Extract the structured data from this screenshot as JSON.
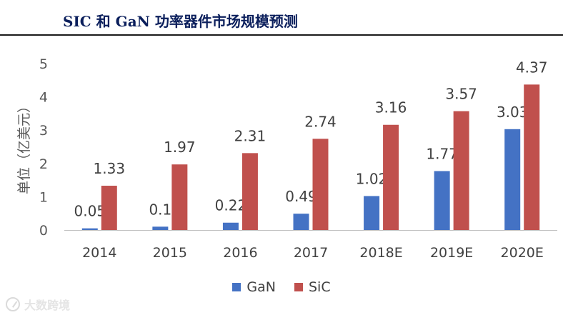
{
  "header": {
    "title": "SIC 和 GaN 功率器件市场规模预测"
  },
  "chart_data": {
    "type": "bar",
    "title": "SIC 和 GaN 功率器件市场规模预测",
    "ylabel": "单位（亿美元）",
    "xlabel": "",
    "ylim": [
      0,
      5
    ],
    "yticks": [
      0,
      1,
      2,
      3,
      4,
      5
    ],
    "grid": false,
    "legend_position": "bottom",
    "categories": [
      "2014",
      "2015",
      "2016",
      "2017",
      "2018E",
      "2019E",
      "2020E"
    ],
    "series": [
      {
        "name": "GaN",
        "color": "#4472c4",
        "values": [
          0.05,
          0.1,
          0.22,
          0.49,
          1.02,
          1.77,
          3.03
        ],
        "labels": [
          "0.05",
          "0.1",
          "0.22",
          "0.49",
          "1.02",
          "1.77",
          "3.03"
        ]
      },
      {
        "name": "SiC",
        "color": "#c0504d",
        "values": [
          1.33,
          1.97,
          2.31,
          2.74,
          3.16,
          3.57,
          4.37
        ],
        "labels": [
          "1.33",
          "1.97",
          "2.31",
          "2.74",
          "3.16",
          "3.57",
          "4.37"
        ]
      }
    ]
  },
  "watermark": {
    "icon": "brand-logo-icon",
    "text": "大数跨境"
  }
}
